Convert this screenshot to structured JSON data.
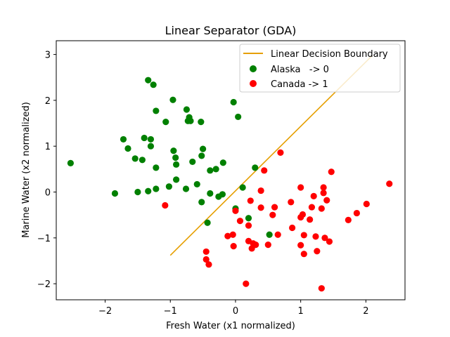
{
  "chart_data": {
    "type": "scatter",
    "title": "Linear Separator (GDA)",
    "xlabel": "Fresh Water (x1 normalized)",
    "ylabel": "Marine Water (x2 normalized)",
    "xlim": [
      -2.75,
      2.6
    ],
    "ylim": [
      -2.35,
      3.3
    ],
    "xticks": [
      -2,
      -1,
      0,
      1,
      2
    ],
    "xtick_labels": [
      "−2",
      "−1",
      "0",
      "1",
      "2"
    ],
    "yticks": [
      -2,
      -1,
      0,
      1,
      2,
      3
    ],
    "ytick_labels": [
      "−2",
      "−1",
      "0",
      "1",
      "2",
      "3"
    ],
    "grid": false,
    "legend_position": "top-right",
    "legend": [
      "Linear Decision Boundary",
      "Alaska   -> 0",
      "Canada -> 1"
    ],
    "line": {
      "name": "Linear Decision Boundary",
      "color": "#e69f00",
      "x": [
        -1.0,
        2.1
      ],
      "y": [
        -1.38,
        2.98
      ]
    },
    "series": [
      {
        "name": "Alaska   -> 0",
        "color": "#008000",
        "points": [
          [
            -2.53,
            0.63
          ],
          [
            -1.85,
            -0.03
          ],
          [
            -1.72,
            1.15
          ],
          [
            -1.65,
            0.95
          ],
          [
            -1.54,
            0.73
          ],
          [
            -1.5,
            0.0
          ],
          [
            -1.43,
            0.7
          ],
          [
            -1.4,
            1.18
          ],
          [
            -1.34,
            2.44
          ],
          [
            -1.34,
            0.02
          ],
          [
            -1.3,
            1.15
          ],
          [
            -1.3,
            1.0
          ],
          [
            -1.26,
            2.34
          ],
          [
            -1.22,
            1.77
          ],
          [
            -1.22,
            0.53
          ],
          [
            -1.22,
            0.07
          ],
          [
            -1.07,
            1.53
          ],
          [
            -1.02,
            0.12
          ],
          [
            -0.96,
            2.01
          ],
          [
            -0.95,
            0.9
          ],
          [
            -0.92,
            0.75
          ],
          [
            -0.91,
            0.6
          ],
          [
            -0.91,
            0.27
          ],
          [
            -0.76,
            0.07
          ],
          [
            -0.75,
            1.8
          ],
          [
            -0.73,
            1.55
          ],
          [
            -0.71,
            1.63
          ],
          [
            -0.69,
            1.55
          ],
          [
            -0.66,
            0.66
          ],
          [
            -0.59,
            0.17
          ],
          [
            -0.53,
            1.53
          ],
          [
            -0.52,
            0.79
          ],
          [
            -0.5,
            0.94
          ],
          [
            -0.52,
            -0.22
          ],
          [
            -0.43,
            -0.67
          ],
          [
            -0.39,
            0.47
          ],
          [
            -0.39,
            -0.03
          ],
          [
            -0.3,
            0.5
          ],
          [
            -0.26,
            -0.1
          ],
          [
            -0.19,
            0.64
          ],
          [
            -0.2,
            -0.05
          ],
          [
            -0.03,
            1.96
          ],
          [
            0.04,
            1.64
          ],
          [
            0.0,
            -0.36
          ],
          [
            0.11,
            0.1
          ],
          [
            0.2,
            -0.57
          ],
          [
            0.3,
            0.53
          ],
          [
            0.52,
            -0.93
          ]
        ]
      },
      {
        "name": "Canada -> 1",
        "color": "#ff0000",
        "points": [
          [
            -1.08,
            -0.29
          ],
          [
            -0.45,
            -1.3
          ],
          [
            -0.45,
            -1.47
          ],
          [
            -0.41,
            -1.58
          ],
          [
            -0.12,
            -0.96
          ],
          [
            -0.04,
            -0.93
          ],
          [
            -0.03,
            -1.18
          ],
          [
            0.0,
            -0.41
          ],
          [
            0.07,
            -0.63
          ],
          [
            0.16,
            -2.0
          ],
          [
            0.2,
            -1.07
          ],
          [
            0.2,
            -0.73
          ],
          [
            0.23,
            -0.19
          ],
          [
            0.25,
            -1.23
          ],
          [
            0.27,
            -1.12
          ],
          [
            0.31,
            -1.15
          ],
          [
            0.39,
            0.03
          ],
          [
            0.39,
            -0.34
          ],
          [
            0.44,
            0.47
          ],
          [
            0.5,
            -1.15
          ],
          [
            0.57,
            -0.5
          ],
          [
            0.6,
            -0.33
          ],
          [
            0.65,
            -0.93
          ],
          [
            0.69,
            0.86
          ],
          [
            0.85,
            -0.22
          ],
          [
            0.87,
            -0.78
          ],
          [
            1.0,
            0.1
          ],
          [
            1.0,
            -0.55
          ],
          [
            1.0,
            -1.16
          ],
          [
            1.03,
            -0.49
          ],
          [
            1.05,
            -0.94
          ],
          [
            1.05,
            -1.35
          ],
          [
            1.14,
            -0.6
          ],
          [
            1.17,
            -0.33
          ],
          [
            1.2,
            -0.09
          ],
          [
            1.23,
            -0.97
          ],
          [
            1.25,
            -1.29
          ],
          [
            1.32,
            -0.36
          ],
          [
            1.32,
            -2.1
          ],
          [
            1.35,
            0.1
          ],
          [
            1.35,
            -0.02
          ],
          [
            1.37,
            -1.0
          ],
          [
            1.4,
            -0.18
          ],
          [
            1.44,
            -1.08
          ],
          [
            1.47,
            0.44
          ],
          [
            1.73,
            -0.61
          ],
          [
            1.86,
            -0.46
          ],
          [
            2.01,
            -0.26
          ],
          [
            2.36,
            0.18
          ]
        ]
      }
    ]
  }
}
